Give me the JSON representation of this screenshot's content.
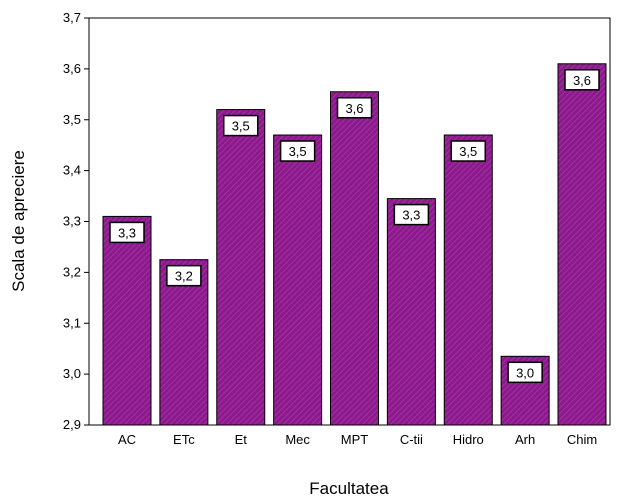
{
  "chart_data": {
    "type": "bar",
    "xlabel": "Facultatea",
    "ylabel": "Scala de apreciere",
    "categories": [
      "AC",
      "ETc",
      "Et",
      "Mec",
      "MPT",
      "C-tii",
      "Hidro",
      "Arh",
      "Chim"
    ],
    "values": [
      3.31,
      3.225,
      3.52,
      3.47,
      3.555,
      3.345,
      3.47,
      3.035,
      3.61
    ],
    "data_labels": [
      "3,3",
      "3,2",
      "3,5",
      "3,5",
      "3,6",
      "3,3",
      "3,5",
      "3,0",
      "3,6"
    ],
    "ylim": [
      2.9,
      3.7
    ],
    "yticks": [
      2.9,
      3.0,
      3.1,
      3.2,
      3.3,
      3.4,
      3.5,
      3.6,
      3.7
    ],
    "ytick_labels": [
      "2,9",
      "3,0",
      "3,1",
      "3,2",
      "3,3",
      "3,4",
      "3,5",
      "3,6",
      "3,7"
    ],
    "grid": false,
    "legend": "none",
    "bar_color": "#8b1a8b",
    "bar_pattern_color": "#b23bb2"
  }
}
